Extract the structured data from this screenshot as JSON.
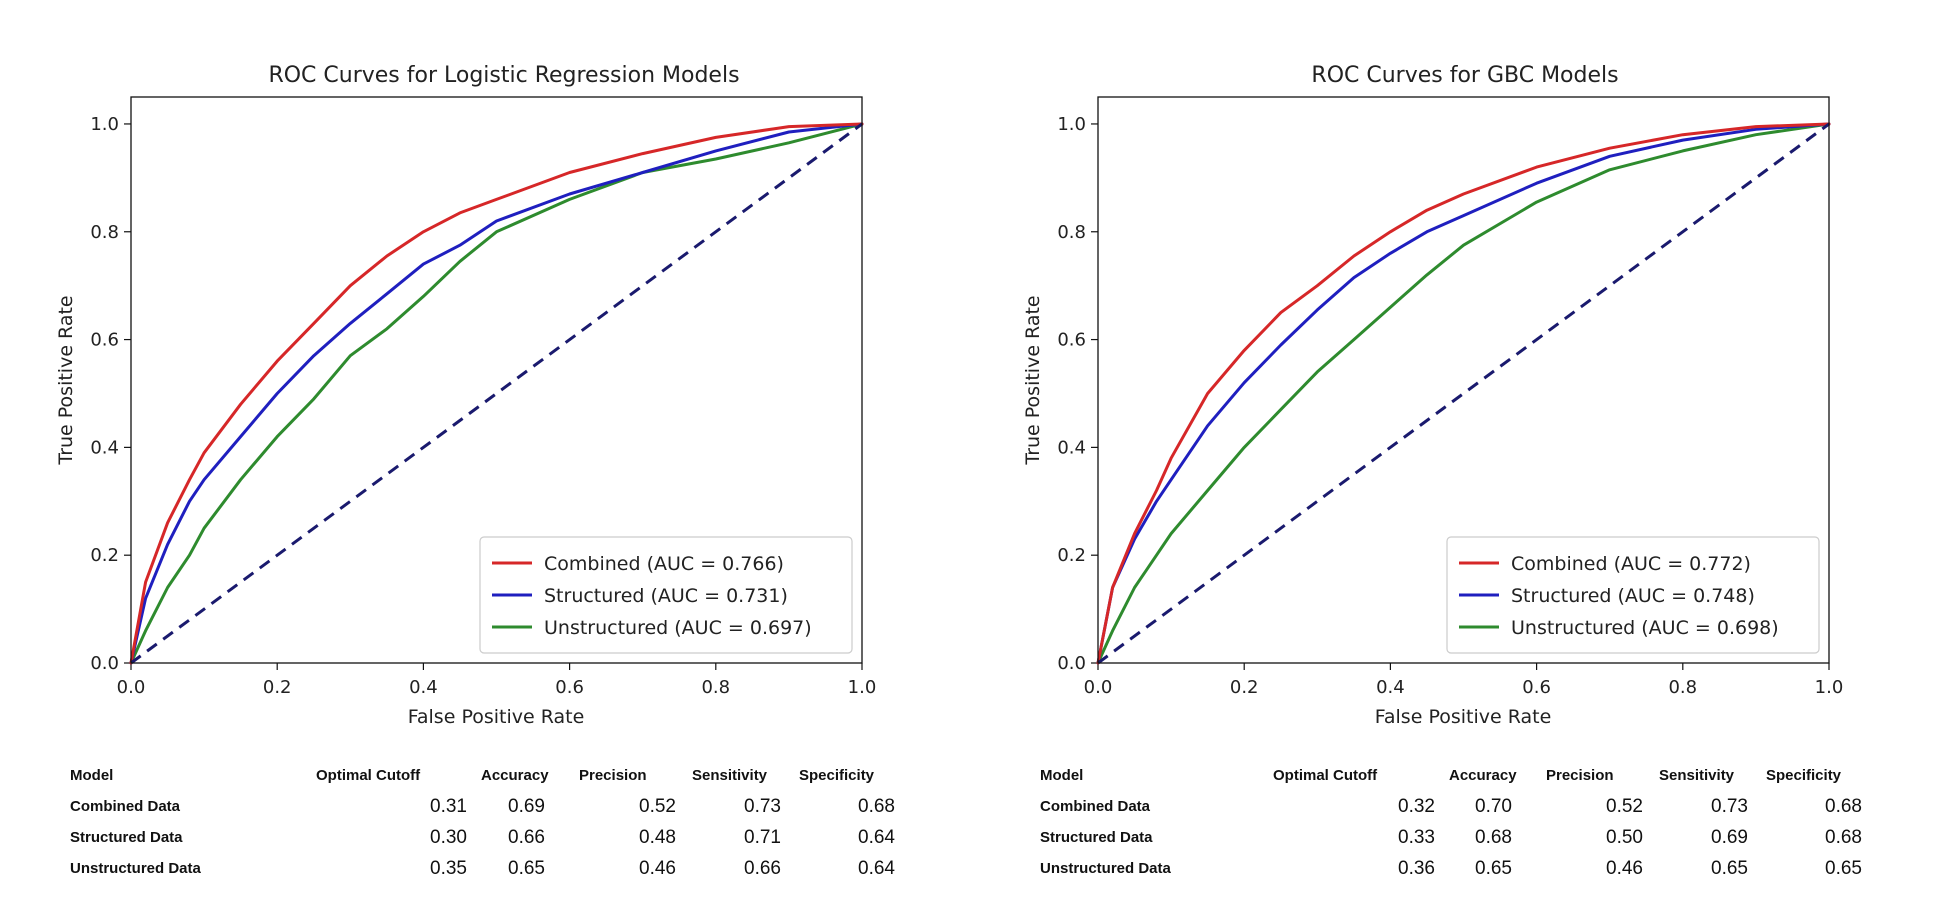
{
  "chart_data": [
    {
      "type": "line",
      "title": "ROC Curves for Logistic Regression Models",
      "xlabel": "False Positive Rate",
      "ylabel": "True Positive Rate",
      "xlim": [
        0.0,
        1.0
      ],
      "ylim": [
        0.0,
        1.05
      ],
      "xticks": [
        "0.0",
        "0.2",
        "0.4",
        "0.6",
        "0.8",
        "1.0"
      ],
      "yticks": [
        "0.0",
        "0.2",
        "0.4",
        "0.6",
        "0.8",
        "1.0"
      ],
      "legend_position": "lower-right",
      "grid": false,
      "series": [
        {
          "name": "Combined (AUC = 0.766)",
          "color": "#d62728",
          "style": "solid",
          "x": [
            0.0,
            0.02,
            0.05,
            0.08,
            0.1,
            0.15,
            0.2,
            0.25,
            0.3,
            0.35,
            0.4,
            0.45,
            0.5,
            0.6,
            0.7,
            0.8,
            0.9,
            1.0
          ],
          "y": [
            0.0,
            0.15,
            0.26,
            0.34,
            0.39,
            0.48,
            0.56,
            0.63,
            0.7,
            0.755,
            0.8,
            0.835,
            0.86,
            0.91,
            0.945,
            0.975,
            0.995,
            1.0
          ]
        },
        {
          "name": "Structured (AUC = 0.731)",
          "color": "#1f1fbf",
          "style": "solid",
          "x": [
            0.0,
            0.02,
            0.05,
            0.08,
            0.1,
            0.15,
            0.2,
            0.25,
            0.3,
            0.35,
            0.4,
            0.45,
            0.5,
            0.6,
            0.7,
            0.8,
            0.9,
            1.0
          ],
          "y": [
            0.0,
            0.12,
            0.22,
            0.3,
            0.34,
            0.42,
            0.5,
            0.57,
            0.63,
            0.685,
            0.74,
            0.775,
            0.82,
            0.87,
            0.91,
            0.95,
            0.985,
            1.0
          ]
        },
        {
          "name": "Unstructured (AUC = 0.697)",
          "color": "#2e8b2e",
          "style": "solid",
          "x": [
            0.0,
            0.02,
            0.05,
            0.08,
            0.1,
            0.15,
            0.2,
            0.25,
            0.3,
            0.35,
            0.4,
            0.45,
            0.5,
            0.6,
            0.7,
            0.8,
            0.9,
            1.0
          ],
          "y": [
            0.0,
            0.06,
            0.14,
            0.2,
            0.25,
            0.34,
            0.42,
            0.49,
            0.57,
            0.62,
            0.68,
            0.745,
            0.8,
            0.86,
            0.91,
            0.935,
            0.965,
            1.0
          ]
        },
        {
          "name": "",
          "color": "#1a1a6e",
          "style": "dashed",
          "x": [
            0.0,
            1.0
          ],
          "y": [
            0.0,
            1.0
          ]
        }
      ]
    },
    {
      "type": "line",
      "title": "ROC Curves for GBC Models",
      "xlabel": "False Positive Rate",
      "ylabel": "True Positive Rate",
      "xlim": [
        0.0,
        1.0
      ],
      "ylim": [
        0.0,
        1.05
      ],
      "xticks": [
        "0.0",
        "0.2",
        "0.4",
        "0.6",
        "0.8",
        "1.0"
      ],
      "yticks": [
        "0.0",
        "0.2",
        "0.4",
        "0.6",
        "0.8",
        "1.0"
      ],
      "legend_position": "lower-right",
      "grid": false,
      "series": [
        {
          "name": "Combined (AUC = 0.772)",
          "color": "#d62728",
          "style": "solid",
          "x": [
            0.0,
            0.02,
            0.05,
            0.08,
            0.1,
            0.15,
            0.2,
            0.25,
            0.3,
            0.35,
            0.4,
            0.45,
            0.5,
            0.6,
            0.7,
            0.8,
            0.9,
            1.0
          ],
          "y": [
            0.0,
            0.14,
            0.24,
            0.32,
            0.38,
            0.5,
            0.58,
            0.65,
            0.7,
            0.755,
            0.8,
            0.84,
            0.87,
            0.92,
            0.955,
            0.98,
            0.995,
            1.0
          ]
        },
        {
          "name": "Structured (AUC = 0.748)",
          "color": "#1f1fbf",
          "style": "solid",
          "x": [
            0.0,
            0.02,
            0.05,
            0.08,
            0.1,
            0.15,
            0.2,
            0.25,
            0.3,
            0.35,
            0.4,
            0.45,
            0.5,
            0.6,
            0.7,
            0.8,
            0.9,
            1.0
          ],
          "y": [
            0.0,
            0.14,
            0.23,
            0.3,
            0.34,
            0.44,
            0.52,
            0.59,
            0.655,
            0.715,
            0.76,
            0.8,
            0.83,
            0.89,
            0.94,
            0.97,
            0.99,
            1.0
          ]
        },
        {
          "name": "Unstructured (AUC = 0.698)",
          "color": "#2e8b2e",
          "style": "solid",
          "x": [
            0.0,
            0.02,
            0.05,
            0.08,
            0.1,
            0.15,
            0.2,
            0.25,
            0.3,
            0.35,
            0.4,
            0.45,
            0.5,
            0.6,
            0.7,
            0.8,
            0.9,
            1.0
          ],
          "y": [
            0.0,
            0.06,
            0.14,
            0.2,
            0.24,
            0.32,
            0.4,
            0.47,
            0.54,
            0.6,
            0.66,
            0.72,
            0.775,
            0.855,
            0.915,
            0.95,
            0.98,
            1.0
          ]
        },
        {
          "name": "",
          "color": "#1a1a6e",
          "style": "dashed",
          "x": [
            0.0,
            1.0
          ],
          "y": [
            0.0,
            1.0
          ]
        }
      ]
    }
  ],
  "tables": [
    {
      "headers": [
        "Model",
        "Optimal Cutoff",
        "Accuracy",
        "Precision",
        "Sensitivity",
        "Specificity"
      ],
      "rows": [
        {
          "label": "Combined Data",
          "values": [
            "0.31",
            "0.69",
            "0.52",
            "0.73",
            "0.68"
          ]
        },
        {
          "label": "Structured Data",
          "values": [
            "0.30",
            "0.66",
            "0.48",
            "0.71",
            "0.64"
          ]
        },
        {
          "label": "Unstructured Data",
          "values": [
            "0.35",
            "0.65",
            "0.46",
            "0.66",
            "0.64"
          ]
        }
      ]
    },
    {
      "headers": [
        "Model",
        "Optimal Cutoff",
        "Accuracy",
        "Precision",
        "Sensitivity",
        "Specificity"
      ],
      "rows": [
        {
          "label": "Combined Data",
          "values": [
            "0.32",
            "0.70",
            "0.52",
            "0.73",
            "0.68"
          ]
        },
        {
          "label": "Structured Data",
          "values": [
            "0.33",
            "0.68",
            "0.50",
            "0.69",
            "0.68"
          ]
        },
        {
          "label": "Unstructured Data",
          "values": [
            "0.36",
            "0.65",
            "0.46",
            "0.65",
            "0.65"
          ]
        }
      ]
    }
  ]
}
